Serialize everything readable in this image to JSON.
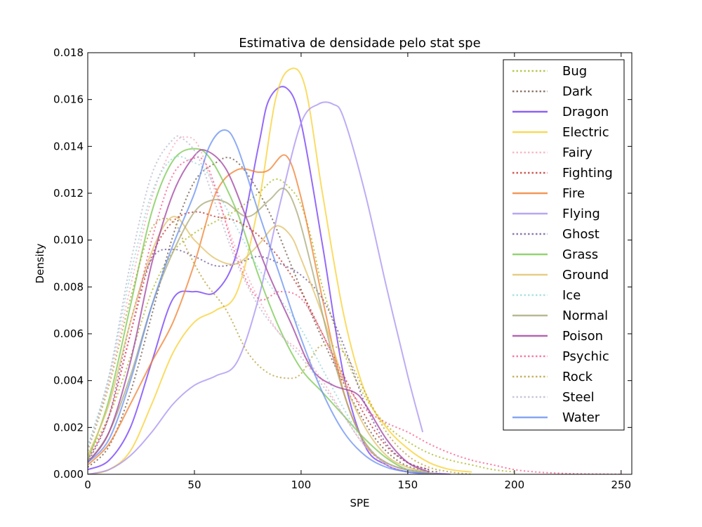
{
  "chart_data": {
    "type": "line",
    "title": "Estimativa de densidade pelo stat spe",
    "xlabel": "SPE",
    "ylabel": "Density",
    "xlim": [
      0,
      255
    ],
    "ylim": [
      0,
      0.018
    ],
    "xticks": [
      0,
      50,
      100,
      150,
      200,
      250
    ],
    "xtick_labels": [
      "0",
      "50",
      "100",
      "150",
      "200",
      "250"
    ],
    "yticks": [
      0,
      0.002,
      0.004,
      0.006,
      0.008,
      0.01,
      0.012,
      0.014,
      0.016,
      0.018
    ],
    "ytick_labels": [
      "0.000",
      "0.002",
      "0.004",
      "0.006",
      "0.008",
      "0.010",
      "0.012",
      "0.014",
      "0.016",
      "0.018"
    ],
    "grid": false,
    "legend_position": "top-right",
    "series": [
      {
        "name": "Bug",
        "color": "#a8b820",
        "dash": "dotted",
        "x": [
          0,
          10,
          20,
          30,
          40,
          50,
          60,
          70,
          80,
          88,
          95,
          100,
          105,
          110,
          120,
          130,
          140,
          150,
          160,
          170,
          180,
          190,
          200
        ],
        "y": [
          0.0008,
          0.0025,
          0.005,
          0.0078,
          0.0095,
          0.0103,
          0.0108,
          0.0113,
          0.012,
          0.0126,
          0.0122,
          0.0115,
          0.01,
          0.008,
          0.0052,
          0.0033,
          0.0021,
          0.0014,
          0.0009,
          0.0006,
          0.0004,
          0.0002,
          0.0001
        ]
      },
      {
        "name": "Dark",
        "color": "#705848",
        "dash": "dotted",
        "x": [
          0,
          10,
          20,
          30,
          40,
          50,
          60,
          67,
          75,
          85,
          95,
          105,
          115,
          125,
          135,
          145,
          155,
          165
        ],
        "y": [
          0.0003,
          0.0012,
          0.0035,
          0.0068,
          0.0102,
          0.0125,
          0.0133,
          0.0135,
          0.0128,
          0.0112,
          0.009,
          0.0068,
          0.0048,
          0.003,
          0.0015,
          0.0006,
          0.0002,
          0.0001
        ]
      },
      {
        "name": "Dragon",
        "color": "#7038f8",
        "dash": "solid",
        "x": [
          0,
          10,
          20,
          30,
          40,
          50,
          60,
          70,
          80,
          85,
          93,
          100,
          110,
          120,
          130,
          140,
          150,
          160,
          170
        ],
        "y": [
          0.0002,
          0.0006,
          0.002,
          0.0048,
          0.0075,
          0.0078,
          0.0078,
          0.0095,
          0.014,
          0.016,
          0.0165,
          0.015,
          0.0098,
          0.0042,
          0.0012,
          0.0004,
          0.0001,
          5e-05,
          0
        ]
      },
      {
        "name": "Electric",
        "color": "#f8d030",
        "dash": "solid",
        "x": [
          0,
          10,
          20,
          30,
          40,
          50,
          60,
          70,
          80,
          88,
          95,
          102,
          110,
          120,
          130,
          140,
          150,
          160,
          170,
          180
        ],
        "y": [
          0,
          0.0002,
          0.001,
          0.003,
          0.0052,
          0.0065,
          0.007,
          0.0078,
          0.0115,
          0.016,
          0.0173,
          0.0165,
          0.012,
          0.0068,
          0.0035,
          0.002,
          0.0011,
          0.0005,
          0.0002,
          0.0001
        ]
      },
      {
        "name": "Fairy",
        "color": "#f8a8b8",
        "dash": "dotted",
        "x": [
          0,
          10,
          20,
          30,
          40,
          46,
          52,
          60,
          70,
          80,
          90,
          100,
          110,
          120,
          130,
          140,
          150
        ],
        "y": [
          0.0012,
          0.004,
          0.008,
          0.0118,
          0.014,
          0.0144,
          0.014,
          0.012,
          0.0095,
          0.0075,
          0.006,
          0.0052,
          0.004,
          0.0025,
          0.0012,
          0.0004,
          0.0001
        ]
      },
      {
        "name": "Fighting",
        "color": "#c03028",
        "dash": "dotted",
        "x": [
          0,
          10,
          20,
          30,
          40,
          50,
          60,
          70,
          80,
          90,
          100,
          110,
          120,
          130,
          140,
          150,
          160
        ],
        "y": [
          0.0006,
          0.0025,
          0.006,
          0.0093,
          0.0108,
          0.0112,
          0.011,
          0.0108,
          0.0102,
          0.0092,
          0.0078,
          0.006,
          0.0042,
          0.0025,
          0.0012,
          0.0005,
          0.0002
        ]
      },
      {
        "name": "Fire",
        "color": "#f08030",
        "dash": "solid",
        "x": [
          0,
          10,
          20,
          30,
          40,
          50,
          60,
          70,
          80,
          85,
          93,
          100,
          110,
          120,
          130,
          140,
          150,
          160
        ],
        "y": [
          0.0004,
          0.0013,
          0.003,
          0.0048,
          0.0065,
          0.009,
          0.012,
          0.013,
          0.0129,
          0.013,
          0.0136,
          0.0118,
          0.0075,
          0.0035,
          0.0013,
          0.0005,
          0.0002,
          0.0001
        ]
      },
      {
        "name": "Flying",
        "color": "#a890f0",
        "dash": "solid",
        "x": [
          0,
          10,
          20,
          30,
          40,
          50,
          60,
          70,
          80,
          90,
          100,
          108,
          115,
          120,
          130,
          140,
          150,
          157
        ],
        "y": [
          0,
          0.0002,
          0.0008,
          0.0018,
          0.003,
          0.0038,
          0.0042,
          0.0048,
          0.0075,
          0.0115,
          0.015,
          0.0158,
          0.0158,
          0.0152,
          0.012,
          0.008,
          0.0042,
          0.0018
        ]
      },
      {
        "name": "Ghost",
        "color": "#705898",
        "dash": "dotted",
        "x": [
          0,
          10,
          20,
          30,
          40,
          50,
          60,
          70,
          80,
          90,
          100,
          110,
          120,
          130,
          140,
          150,
          160
        ],
        "y": [
          0.0005,
          0.0025,
          0.0065,
          0.0092,
          0.0096,
          0.0093,
          0.0089,
          0.009,
          0.0093,
          0.009,
          0.0085,
          0.0075,
          0.0055,
          0.003,
          0.0013,
          0.0005,
          0.0002
        ]
      },
      {
        "name": "Grass",
        "color": "#78c850",
        "dash": "solid",
        "x": [
          0,
          10,
          20,
          30,
          40,
          50,
          58,
          70,
          80,
          90,
          100,
          110,
          120,
          130,
          140,
          150,
          160
        ],
        "y": [
          0.0006,
          0.0032,
          0.0072,
          0.0112,
          0.0134,
          0.0139,
          0.0134,
          0.0112,
          0.0085,
          0.0062,
          0.0045,
          0.0035,
          0.0025,
          0.0015,
          0.0007,
          0.0002,
          0.0001
        ]
      },
      {
        "name": "Ground",
        "color": "#e0c068",
        "dash": "solid",
        "x": [
          0,
          10,
          20,
          30,
          40,
          50,
          60,
          70,
          80,
          88,
          95,
          100,
          110,
          120,
          130,
          140,
          150,
          160
        ],
        "y": [
          0.0008,
          0.003,
          0.0065,
          0.0095,
          0.011,
          0.01,
          0.0092,
          0.009,
          0.0098,
          0.0106,
          0.0102,
          0.0092,
          0.0068,
          0.004,
          0.002,
          0.0008,
          0.0003,
          0.0001
        ]
      },
      {
        "name": "Ice",
        "color": "#98d8d8",
        "dash": "dotted",
        "x": [
          0,
          10,
          20,
          30,
          40,
          50,
          55,
          60,
          70,
          80,
          90,
          100,
          110,
          120,
          130,
          140,
          150,
          160
        ],
        "y": [
          0.0012,
          0.0042,
          0.0085,
          0.012,
          0.0135,
          0.0133,
          0.013,
          0.0122,
          0.0105,
          0.0088,
          0.0075,
          0.0062,
          0.0045,
          0.0028,
          0.0013,
          0.0005,
          0.0002,
          0.0001
        ]
      },
      {
        "name": "Normal",
        "color": "#a8a878",
        "dash": "solid",
        "x": [
          0,
          10,
          20,
          30,
          40,
          50,
          58,
          65,
          75,
          85,
          92,
          98,
          105,
          115,
          125,
          135,
          145,
          155,
          165
        ],
        "y": [
          0.0005,
          0.0018,
          0.0042,
          0.0072,
          0.0095,
          0.0112,
          0.0117,
          0.0116,
          0.011,
          0.0117,
          0.0122,
          0.0112,
          0.0088,
          0.005,
          0.0022,
          0.0008,
          0.0003,
          0.0001,
          0
        ]
      },
      {
        "name": "Poison",
        "color": "#a040a0",
        "dash": "solid",
        "x": [
          0,
          10,
          20,
          30,
          40,
          50,
          56,
          65,
          75,
          85,
          95,
          105,
          115,
          125,
          130,
          140,
          150,
          160
        ],
        "y": [
          0.0005,
          0.0018,
          0.0048,
          0.009,
          0.012,
          0.0136,
          0.0138,
          0.013,
          0.0108,
          0.0085,
          0.0065,
          0.0045,
          0.0038,
          0.0035,
          0.003,
          0.0015,
          0.0005,
          0.0001
        ]
      },
      {
        "name": "Psychic",
        "color": "#f85888",
        "dash": "dotted",
        "x": [
          0,
          10,
          20,
          30,
          40,
          50,
          55,
          60,
          70,
          80,
          90,
          100,
          110,
          120,
          130,
          140,
          150,
          160,
          170,
          180,
          190,
          200,
          210,
          220,
          230,
          240,
          250
        ],
        "y": [
          0.0006,
          0.0025,
          0.006,
          0.01,
          0.0128,
          0.0135,
          0.0133,
          0.0122,
          0.0092,
          0.0075,
          0.0078,
          0.0075,
          0.006,
          0.004,
          0.0028,
          0.0022,
          0.0018,
          0.0013,
          0.0009,
          0.0006,
          0.0004,
          0.0002,
          0.0001,
          5e-05,
          2e-05,
          1e-05,
          0
        ]
      },
      {
        "name": "Rock",
        "color": "#b8a038",
        "dash": "dotted",
        "x": [
          0,
          10,
          20,
          30,
          40,
          47,
          55,
          65,
          75,
          85,
          95,
          100,
          105,
          110,
          120,
          130,
          140,
          150,
          160,
          170,
          180
        ],
        "y": [
          0.001,
          0.0038,
          0.0075,
          0.0105,
          0.0108,
          0.0095,
          0.0082,
          0.007,
          0.0052,
          0.0043,
          0.0041,
          0.0043,
          0.005,
          0.0055,
          0.0052,
          0.0035,
          0.0018,
          0.0008,
          0.0003,
          0.0001,
          0
        ]
      },
      {
        "name": "Steel",
        "color": "#b8b8d0",
        "dash": "dotted",
        "x": [
          0,
          10,
          20,
          30,
          40,
          45,
          52,
          60,
          70,
          80,
          90,
          100,
          110,
          120,
          130,
          140,
          150,
          160
        ],
        "y": [
          0.001,
          0.0042,
          0.009,
          0.0128,
          0.0143,
          0.0143,
          0.0135,
          0.0115,
          0.009,
          0.0072,
          0.006,
          0.005,
          0.0038,
          0.0025,
          0.0012,
          0.0005,
          0.0002,
          0.0001
        ]
      },
      {
        "name": "Water",
        "color": "#6890f0",
        "dash": "solid",
        "x": [
          0,
          10,
          20,
          30,
          40,
          50,
          57,
          64,
          70,
          80,
          90,
          100,
          110,
          120,
          130,
          140,
          150,
          160
        ],
        "y": [
          0.0005,
          0.0015,
          0.004,
          0.0072,
          0.0098,
          0.012,
          0.014,
          0.0147,
          0.014,
          0.0112,
          0.0085,
          0.0058,
          0.0035,
          0.0018,
          0.0008,
          0.0003,
          0.0001,
          0
        ]
      }
    ]
  }
}
